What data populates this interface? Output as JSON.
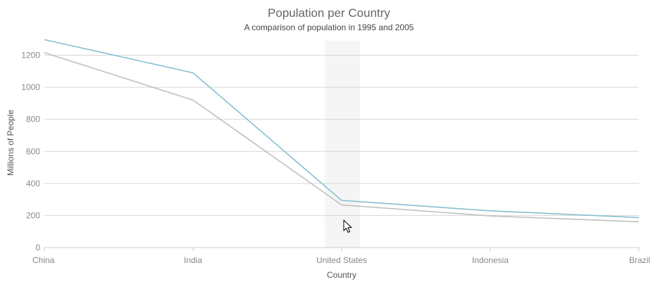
{
  "chart_data": {
    "type": "line",
    "title": "Population per Country",
    "subtitle": "A comparison of population in 1995 and 2005",
    "xlabel": "Country",
    "ylabel": "Millions of People",
    "categories": [
      "China",
      "India",
      "United States",
      "Indonesia",
      "Brazil"
    ],
    "ylim": [
      0,
      1300
    ],
    "yticks": [
      0,
      200,
      400,
      600,
      800,
      1000,
      1200
    ],
    "grid": true,
    "legend": "none",
    "highlighted_category": "United States",
    "series": [
      {
        "values": [
          1297,
          1090,
          294,
          229,
          187
        ],
        "color": "#86c0d1"
      },
      {
        "values": [
          1216,
          920,
          266,
          197,
          161
        ],
        "color": "#c0c0c0"
      }
    ]
  },
  "icons": {
    "cursor": "mouse-pointer-icon"
  }
}
